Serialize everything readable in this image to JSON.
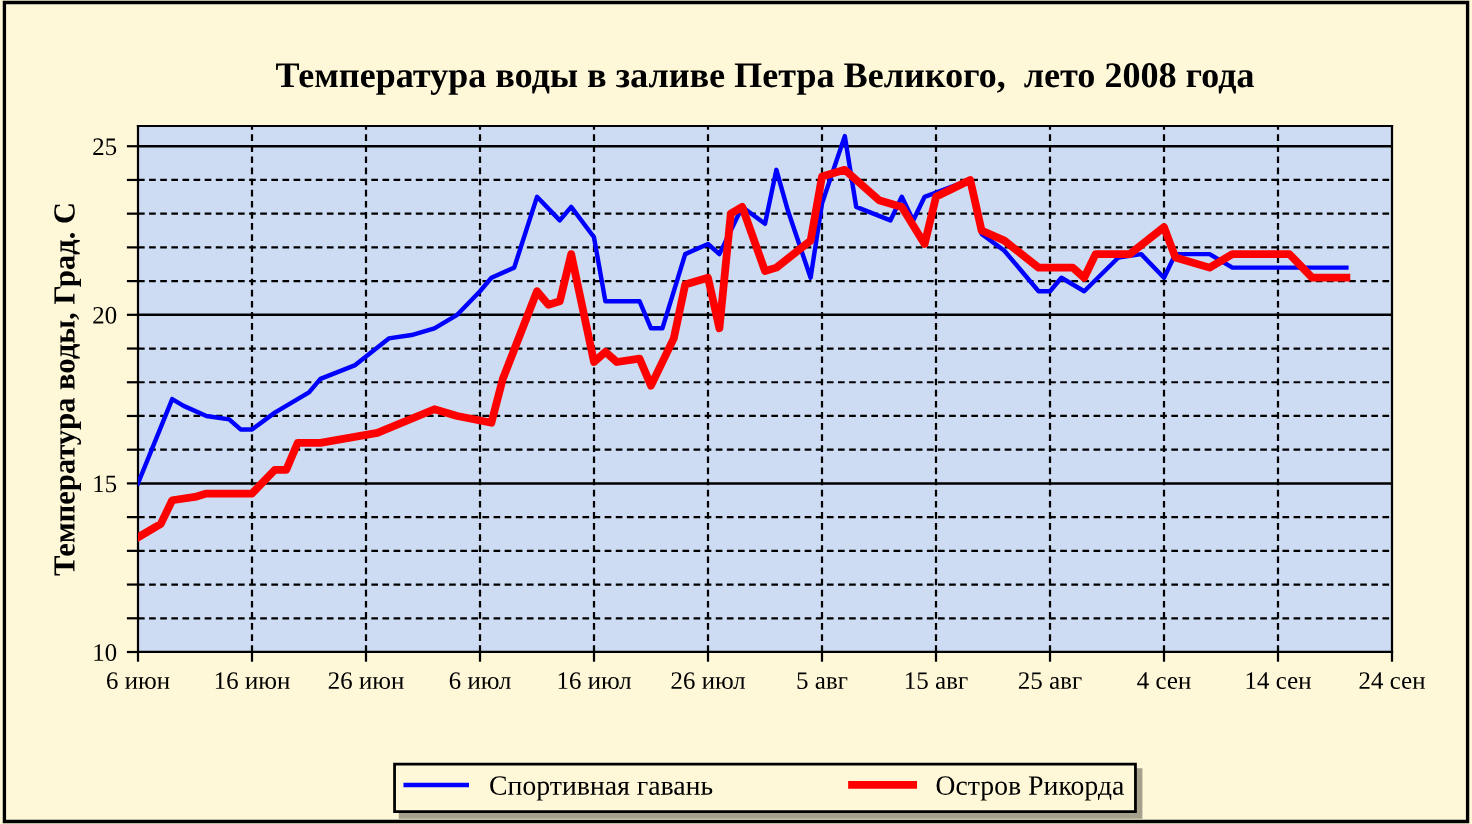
{
  "chart_data": {
    "type": "line",
    "title": "Температура воды в заливе Петра Великого,  лето 2008 года",
    "ylabel": "Температура воды, Град. С",
    "xlim": [
      "2008-06-06",
      "2008-09-24"
    ],
    "xticks": [
      {
        "value": "2008-06-06",
        "label": "6 июн"
      },
      {
        "value": "2008-06-16",
        "label": "16 июн"
      },
      {
        "value": "2008-06-26",
        "label": "26 июн"
      },
      {
        "value": "2008-07-06",
        "label": "6 июл"
      },
      {
        "value": "2008-07-16",
        "label": "16 июл"
      },
      {
        "value": "2008-07-26",
        "label": "26 июл"
      },
      {
        "value": "2008-08-05",
        "label": "5 авг"
      },
      {
        "value": "2008-08-15",
        "label": "15 авг"
      },
      {
        "value": "2008-08-25",
        "label": "25 авг"
      },
      {
        "value": "2008-09-04",
        "label": "4 сен"
      },
      {
        "value": "2008-09-14",
        "label": "14 сен"
      },
      {
        "value": "2008-09-24",
        "label": "24 сен"
      }
    ],
    "ylim": [
      10,
      25.6
    ],
    "yticks": [
      10,
      {
        "value": 11,
        "label": null
      },
      {
        "value": 12,
        "label": null
      },
      {
        "value": 13,
        "label": null
      },
      {
        "value": 14,
        "label": null
      },
      15,
      {
        "value": 16,
        "label": null
      },
      {
        "value": 17,
        "label": null
      },
      {
        "value": 18,
        "label": null
      },
      {
        "value": 19,
        "label": null
      },
      20,
      {
        "value": 21,
        "label": null
      },
      {
        "value": 22,
        "label": null
      },
      {
        "value": 23,
        "label": null
      },
      {
        "value": 24,
        "label": null
      },
      25
    ],
    "grid": true,
    "legend": "bottom",
    "marker": "none",
    "line_style": "solid",
    "series": [
      {
        "name": "Спортивная гавань",
        "color": "#0000ff",
        "x": [
          "2008-06-06",
          "2008-06-09",
          "2008-06-10",
          "2008-06-12",
          "2008-06-14",
          "2008-06-15",
          "2008-06-16",
          "2008-06-18",
          "2008-06-20",
          "2008-06-21",
          "2008-06-22",
          "2008-06-25",
          "2008-06-28",
          "2008-06-30",
          "2008-07-02",
          "2008-07-04",
          "2008-07-06",
          "2008-07-07",
          "2008-07-09",
          "2008-07-11",
          "2008-07-13",
          "2008-07-14",
          "2008-07-16",
          "2008-07-17",
          "2008-07-20",
          "2008-07-21",
          "2008-07-22",
          "2008-07-24",
          "2008-07-26",
          "2008-07-27",
          "2008-07-29",
          "2008-07-31",
          "2008-08-01",
          "2008-08-02",
          "2008-08-04",
          "2008-08-05",
          "2008-08-07",
          "2008-08-08",
          "2008-08-11",
          "2008-08-12",
          "2008-08-13",
          "2008-08-14",
          "2008-08-18",
          "2008-08-19",
          "2008-08-21",
          "2008-08-24",
          "2008-08-25",
          "2008-08-26",
          "2008-08-28",
          "2008-08-31",
          "2008-09-02",
          "2008-09-04",
          "2008-09-05",
          "2008-09-08",
          "2008-09-10",
          "2008-09-20"
        ],
        "values": [
          15.0,
          17.5,
          17.3,
          17.0,
          16.9,
          16.6,
          16.6,
          17.1,
          17.5,
          17.7,
          18.1,
          18.5,
          19.3,
          19.4,
          19.6,
          20.0,
          20.7,
          21.1,
          21.4,
          23.5,
          22.8,
          23.2,
          22.3,
          20.4,
          20.4,
          19.6,
          19.6,
          21.8,
          22.1,
          21.8,
          23.2,
          22.7,
          24.3,
          23.1,
          21.1,
          23.3,
          25.3,
          23.2,
          22.8,
          23.5,
          22.8,
          23.5,
          24.0,
          22.4,
          21.9,
          20.7,
          20.7,
          21.1,
          20.7,
          21.7,
          21.8,
          21.1,
          21.8,
          21.8,
          21.4,
          21.4
        ]
      },
      {
        "name": "Остров Рикорда",
        "color": "#ff0000",
        "x": [
          "2008-06-06",
          "2008-06-08",
          "2008-06-09",
          "2008-06-11",
          "2008-06-12",
          "2008-06-16",
          "2008-06-18",
          "2008-06-19",
          "2008-06-20",
          "2008-06-22",
          "2008-06-27",
          "2008-07-02",
          "2008-07-04",
          "2008-07-07",
          "2008-07-08",
          "2008-07-11",
          "2008-07-12",
          "2008-07-13",
          "2008-07-14",
          "2008-07-16",
          "2008-07-17",
          "2008-07-18",
          "2008-07-20",
          "2008-07-21",
          "2008-07-23",
          "2008-07-24",
          "2008-07-26",
          "2008-07-27",
          "2008-07-28",
          "2008-07-29",
          "2008-07-31",
          "2008-08-01",
          "2008-08-04",
          "2008-08-05",
          "2008-08-07",
          "2008-08-10",
          "2008-08-12",
          "2008-08-14",
          "2008-08-15",
          "2008-08-18",
          "2008-08-19",
          "2008-08-21",
          "2008-08-24",
          "2008-08-27",
          "2008-08-28",
          "2008-08-29",
          "2008-09-01",
          "2008-09-04",
          "2008-09-05",
          "2008-09-08",
          "2008-09-10",
          "2008-09-15",
          "2008-09-17",
          "2008-09-20"
        ],
        "values": [
          13.4,
          13.8,
          14.5,
          14.6,
          14.7,
          14.7,
          15.4,
          15.4,
          16.2,
          16.2,
          16.5,
          17.2,
          17.0,
          16.8,
          18.1,
          20.7,
          20.3,
          20.4,
          21.8,
          18.6,
          18.9,
          18.6,
          18.7,
          17.9,
          19.3,
          20.9,
          21.1,
          19.6,
          23.0,
          23.2,
          21.3,
          21.4,
          22.2,
          24.1,
          24.3,
          23.4,
          23.2,
          22.1,
          23.5,
          24.0,
          22.5,
          22.2,
          21.4,
          21.4,
          21.1,
          21.8,
          21.8,
          22.6,
          21.7,
          21.4,
          21.8,
          21.8,
          21.1,
          21.1
        ]
      }
    ]
  }
}
